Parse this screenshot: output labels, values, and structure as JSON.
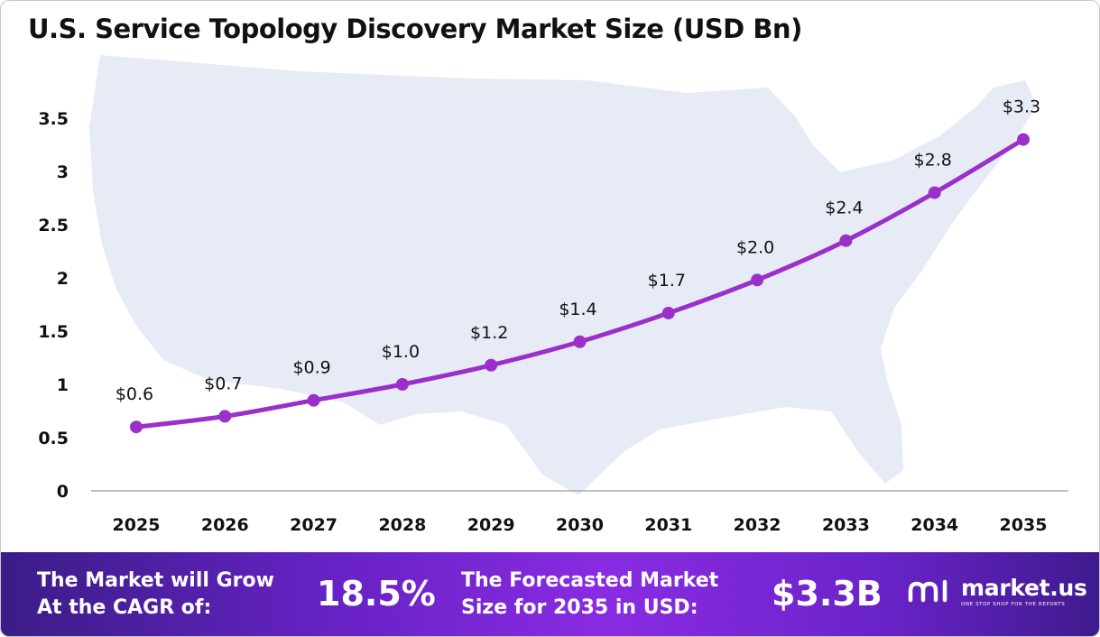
{
  "title": "U.S. Service Topology Discovery Market Size (USD Bn)",
  "colors": {
    "line": "#9b2fc9",
    "point": "#9b2fc9",
    "map": "#e7ebf5",
    "axis": "#9a9a9a",
    "footer_start": "#3a1d86",
    "footer_mid": "#8a2be2",
    "footer_end": "#3e1a8d"
  },
  "chart_data": {
    "type": "line",
    "x": [
      "2025",
      "2026",
      "2027",
      "2028",
      "2029",
      "2030",
      "2031",
      "2032",
      "2033",
      "2034",
      "2035"
    ],
    "series": [
      {
        "values": [
          0.6,
          0.7,
          0.85,
          1.0,
          1.18,
          1.4,
          1.67,
          1.98,
          2.35,
          2.8,
          3.3
        ]
      }
    ],
    "data_labels": [
      "$0.6",
      "$0.7",
      "$0.9",
      "$1.0",
      "$1.2",
      "$1.4",
      "$1.7",
      "$2.0",
      "$2.4",
      "$2.8",
      "$3.3"
    ],
    "y_ticks": [
      "0",
      "0.5",
      "1",
      "1.5",
      "2",
      "2.5",
      "3",
      "3.5"
    ],
    "y_tick_values": [
      0,
      0.5,
      1,
      1.5,
      2,
      2.5,
      3,
      3.5
    ],
    "ylim": [
      0,
      3.5
    ],
    "grid": false,
    "legend": "none",
    "background": "map of the United States"
  },
  "footer": {
    "cagr_label_line1": "The Market will Grow",
    "cagr_label_line2": "At the CAGR of:",
    "cagr_value": "18.5%",
    "forecast_label_line1": "The Forecasted Market",
    "forecast_label_line2": "Size for 2035 in USD:",
    "forecast_value": "$3.3B",
    "logo_name": "market.us",
    "logo_tagline": "ONE STOP SHOP FOR THE REPORTS",
    "logo_icon": "market-us-logo-icon"
  }
}
